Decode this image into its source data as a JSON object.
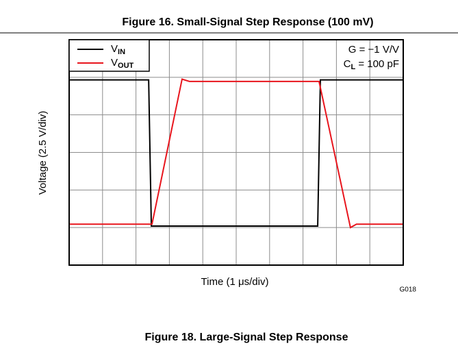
{
  "chart_data": {
    "type": "line",
    "title": "Figure 16. Small-Signal Step Response (100 mV)",
    "xlabel": "Time (1 μs/div)",
    "ylabel": "Voltage (2.5 V/div)",
    "figure_id": "G018",
    "caption": "Figure 18. Large-Signal Step Response",
    "xlim": [
      0,
      10
    ],
    "ylim": [
      0,
      6
    ],
    "xticks": [
      0,
      1,
      2,
      3,
      4,
      5,
      6,
      7,
      8,
      9,
      10
    ],
    "yticks": [
      0,
      1,
      2,
      3,
      4,
      5,
      6
    ],
    "grid": true,
    "legend": "upper left",
    "annotations": [
      [
        "G = −1 V/V"
      ],
      [
        "C",
        "L",
        " = 100 pF"
      ]
    ],
    "series": [
      {
        "name": "V",
        "name_subscript": "IN",
        "color": "#000000",
        "x": [
          0,
          2.38,
          2.46,
          7.44,
          7.52,
          10
        ],
        "values": [
          4.93,
          4.93,
          1.04,
          1.04,
          4.93,
          4.93
        ]
      },
      {
        "name": "V",
        "name_subscript": "OUT",
        "color": "#e8141c",
        "x": [
          0,
          2.48,
          3.38,
          3.6,
          7.48,
          8.42,
          8.6,
          10
        ],
        "values": [
          1.09,
          1.09,
          4.95,
          4.89,
          4.89,
          1.0,
          1.09,
          1.09
        ]
      }
    ]
  }
}
